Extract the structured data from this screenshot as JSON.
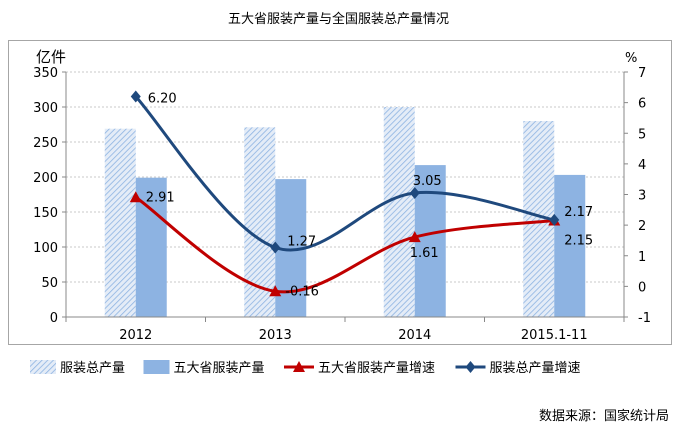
{
  "title": "五大省服装产量与全国服装总产量情况",
  "source": "数据来源：国家统计局",
  "chart_data": {
    "type": "bar+line",
    "title": "五大省服装产量与全国服装总产量情况",
    "categories": [
      "2012",
      "2013",
      "2014",
      "2015.1-11"
    ],
    "y_left": {
      "label": "亿件",
      "ylim": [
        0,
        350
      ],
      "ticks": [
        "0",
        "50",
        "100",
        "150",
        "200",
        "250",
        "300",
        "350"
      ]
    },
    "y_right": {
      "label": "%",
      "ylim": [
        -1,
        7
      ],
      "ticks": [
        "-1",
        "0",
        "1",
        "2",
        "3",
        "4",
        "5",
        "6",
        "7"
      ]
    },
    "series": [
      {
        "name": "服装总产量",
        "type": "bar",
        "axis": "left",
        "color": "#b8cde8",
        "values": [
          269,
          271,
          300,
          280
        ]
      },
      {
        "name": "五大省服装产量",
        "type": "bar",
        "axis": "left",
        "color": "#8db3e2",
        "values": [
          199,
          197,
          217,
          203
        ]
      },
      {
        "name": "五大省服装产量增速",
        "type": "line",
        "axis": "right",
        "color": "#c00000",
        "values": [
          2.91,
          -0.16,
          1.61,
          2.15
        ],
        "labels": [
          "2.91",
          "-0.16",
          "1.61",
          "2.15"
        ]
      },
      {
        "name": "服装总产量增速",
        "type": "line",
        "axis": "right",
        "color": "#1f497d",
        "values": [
          6.2,
          1.27,
          3.05,
          2.17
        ],
        "labels": [
          "6.20",
          "1.27",
          "3.05",
          "2.17"
        ]
      }
    ],
    "grid": true,
    "legend": "bottom"
  }
}
